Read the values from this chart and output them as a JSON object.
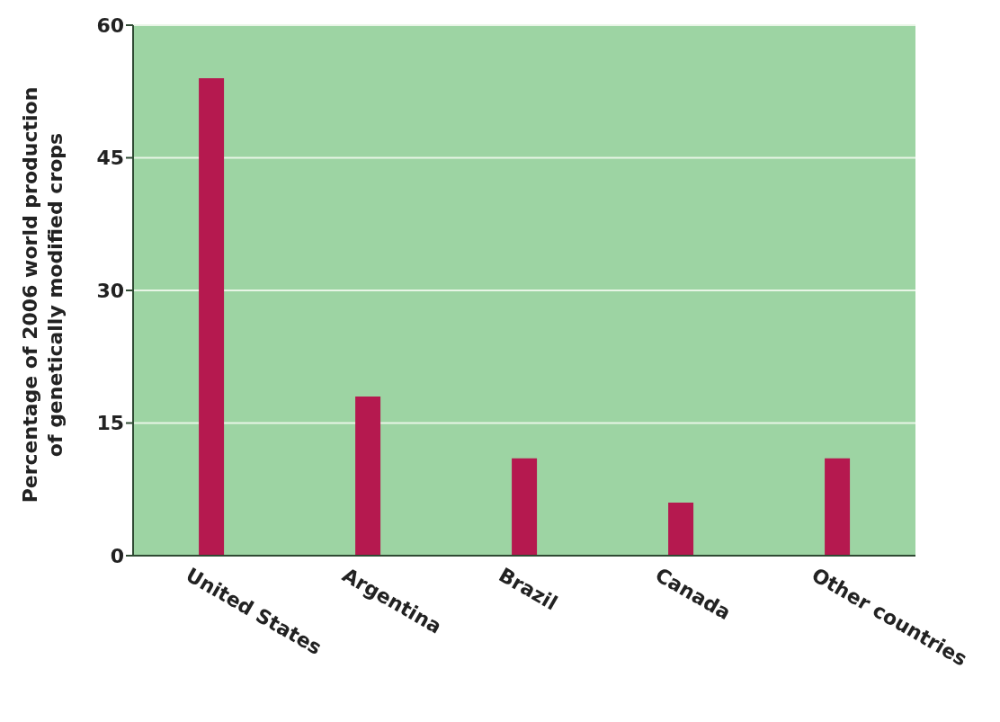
{
  "chart_data": {
    "type": "bar",
    "ylabel": "Percentage of 2006 world production\nof genetically modified crops",
    "categories": [
      "United States",
      "Argentina",
      "Brazil",
      "Canada",
      "Other countries"
    ],
    "values": [
      54,
      18,
      11,
      6,
      11
    ],
    "color": "#b5194f",
    "ylim": [
      0,
      60
    ],
    "yticks": [
      0,
      15,
      30,
      45,
      60
    ],
    "grid": "y"
  }
}
